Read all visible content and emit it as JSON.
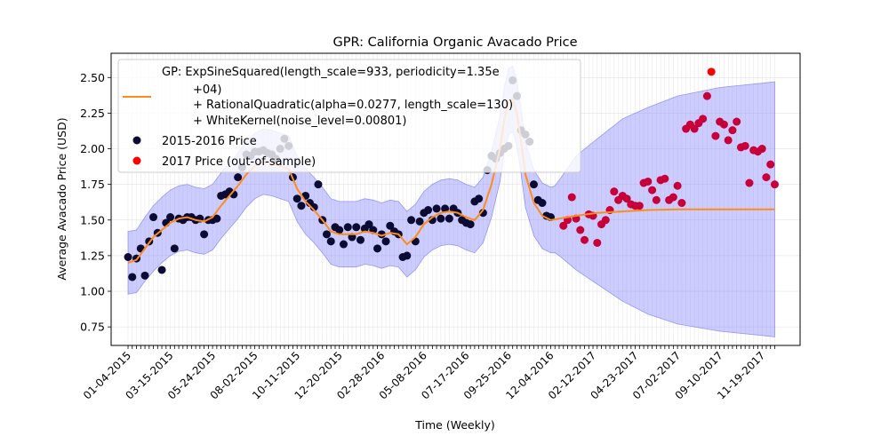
{
  "chart_data": {
    "type": "scatter",
    "title": "GPR: California Organic Avacado Price",
    "xlabel": "Time (Weekly)",
    "ylabel": "Average Avacado Price (USD)",
    "ylim": [
      0.62,
      2.67
    ],
    "xlim": [
      "2014-12-07",
      "2018-01-21"
    ],
    "grid": true,
    "legend_position": "top-left",
    "x_tick_labels": [
      "01-04-2015",
      "03-15-2015",
      "05-24-2015",
      "08-02-2015",
      "10-11-2015",
      "12-20-2015",
      "02-28-2016",
      "05-08-2016",
      "07-17-2016",
      "09-25-2016",
      "12-04-2016",
      "02-12-2017",
      "04-23-2017",
      "07-02-2017",
      "09-10-2017",
      "11-19-2017"
    ],
    "y_ticks": [
      0.75,
      1.0,
      1.25,
      1.5,
      1.75,
      2.0,
      2.25,
      2.5
    ],
    "y_tick_labels": [
      "0.75",
      "1.00",
      "1.25",
      "1.50",
      "1.75",
      "2.00",
      "2.25",
      "2.50"
    ],
    "legend": {
      "gp_label_lines": [
        "GP: ExpSineSquared(length_scale=933, periodicity=1.35e",
        "+04)",
        "+ RationalQuadratic(alpha=0.0277, length_scale=130)",
        "+ WhiteKernel(noise_level=0.00801)"
      ],
      "train_label": "2015-2016 Price",
      "test_label": "2017 Price (out-of-sample)"
    },
    "colors": {
      "train": "#0b0b33",
      "test": "#ff0000",
      "test_alt": "#c8003a",
      "line": "#ff8c1a",
      "band": "#8080ff"
    },
    "series": [
      {
        "name": "2015-2016 Price",
        "x": [
          "2015-01-04",
          "2015-01-11",
          "2015-01-18",
          "2015-01-25",
          "2015-02-01",
          "2015-02-08",
          "2015-02-15",
          "2015-02-22",
          "2015-03-01",
          "2015-03-08",
          "2015-03-15",
          "2015-03-22",
          "2015-03-29",
          "2015-04-05",
          "2015-04-12",
          "2015-04-19",
          "2015-04-26",
          "2015-05-03",
          "2015-05-10",
          "2015-05-17",
          "2015-05-24",
          "2015-05-31",
          "2015-06-07",
          "2015-06-14",
          "2015-06-21",
          "2015-06-28",
          "2015-07-05",
          "2015-07-12",
          "2015-07-19",
          "2015-07-26",
          "2015-08-02",
          "2015-08-09",
          "2015-08-16",
          "2015-08-23",
          "2015-08-30",
          "2015-09-06",
          "2015-09-13",
          "2015-09-20",
          "2015-09-27",
          "2015-10-04",
          "2015-10-11",
          "2015-10-18",
          "2015-10-25",
          "2015-11-01",
          "2015-11-08",
          "2015-11-15",
          "2015-11-22",
          "2015-11-29",
          "2015-12-06",
          "2015-12-13",
          "2015-12-20",
          "2015-12-27",
          "2016-01-03",
          "2016-01-10",
          "2016-01-17",
          "2016-01-24",
          "2016-01-31",
          "2016-02-07",
          "2016-02-14",
          "2016-02-21",
          "2016-02-28",
          "2016-03-06",
          "2016-03-13",
          "2016-03-20",
          "2016-03-27",
          "2016-04-03",
          "2016-04-10",
          "2016-04-17",
          "2016-04-24",
          "2016-05-01",
          "2016-05-08",
          "2016-05-15",
          "2016-05-22",
          "2016-05-29",
          "2016-06-05",
          "2016-06-12",
          "2016-06-19",
          "2016-06-26",
          "2016-07-03",
          "2016-07-10",
          "2016-07-17",
          "2016-07-24",
          "2016-07-31",
          "2016-08-07",
          "2016-08-14",
          "2016-08-21",
          "2016-08-28",
          "2016-09-04",
          "2016-09-11",
          "2016-09-18",
          "2016-09-25",
          "2016-10-02",
          "2016-10-09",
          "2016-10-16",
          "2016-10-23",
          "2016-10-30",
          "2016-11-06",
          "2016-11-13",
          "2016-11-20",
          "2016-11-27",
          "2016-12-04"
        ],
        "y": [
          1.24,
          1.1,
          1.23,
          1.3,
          1.11,
          1.35,
          1.52,
          1.41,
          1.15,
          1.48,
          1.52,
          1.3,
          1.51,
          1.5,
          1.52,
          1.52,
          1.5,
          1.51,
          1.4,
          1.5,
          1.5,
          1.51,
          1.67,
          1.68,
          1.7,
          1.68,
          1.8,
          1.87,
          1.96,
          1.95,
          1.98,
          1.98,
          1.99,
          1.97,
          1.96,
          1.93,
          2.0,
          2.07,
          2.02,
          1.8,
          1.65,
          1.6,
          1.67,
          1.62,
          1.59,
          1.75,
          1.5,
          1.4,
          1.35,
          1.45,
          1.43,
          1.33,
          1.45,
          1.38,
          1.45,
          1.36,
          1.44,
          1.47,
          1.43,
          1.3,
          1.4,
          1.35,
          1.46,
          1.42,
          1.4,
          1.24,
          1.25,
          1.5,
          1.35,
          1.49,
          1.55,
          1.57,
          1.5,
          1.58,
          1.51,
          1.58,
          1.51,
          1.58,
          1.55,
          1.5,
          1.48,
          1.47,
          1.63,
          1.65,
          1.55,
          1.85,
          1.95,
          1.93,
          1.97,
          2.0,
          2.02,
          2.48,
          2.37,
          2.13,
          2.1,
          2.05,
          1.75,
          1.64,
          1.62,
          1.53,
          1.52
        ]
      },
      {
        "name": "2017 Price (out-of-sample)",
        "x": [
          "2016-12-25",
          "2017-01-01",
          "2017-01-08",
          "2017-01-15",
          "2017-01-22",
          "2017-01-29",
          "2017-02-05",
          "2017-02-12",
          "2017-02-19",
          "2017-02-26",
          "2017-03-05",
          "2017-03-12",
          "2017-03-19",
          "2017-03-26",
          "2017-04-02",
          "2017-04-09",
          "2017-04-16",
          "2017-04-23",
          "2017-04-30",
          "2017-05-07",
          "2017-05-14",
          "2017-05-21",
          "2017-05-28",
          "2017-06-04",
          "2017-06-11",
          "2017-06-18",
          "2017-06-25",
          "2017-07-02",
          "2017-07-09",
          "2017-07-16",
          "2017-07-23",
          "2017-07-30",
          "2017-08-06",
          "2017-08-13",
          "2017-08-20",
          "2017-08-27",
          "2017-09-03",
          "2017-09-10",
          "2017-09-17",
          "2017-09-24",
          "2017-10-01",
          "2017-10-08",
          "2017-10-15",
          "2017-10-22",
          "2017-10-29",
          "2017-11-05",
          "2017-11-12",
          "2017-11-19",
          "2017-11-26",
          "2017-12-03",
          "2017-12-10"
        ],
        "y": [
          1.46,
          1.5,
          1.66,
          1.51,
          1.43,
          1.36,
          1.54,
          1.53,
          1.34,
          1.47,
          1.5,
          1.57,
          1.7,
          1.64,
          1.67,
          1.65,
          1.61,
          1.6,
          1.6,
          1.76,
          1.77,
          1.71,
          1.64,
          1.78,
          1.79,
          1.64,
          1.66,
          1.74,
          1.62,
          2.14,
          2.17,
          2.14,
          2.18,
          2.21,
          2.37,
          2.54,
          2.09,
          2.19,
          2.17,
          2.06,
          2.13,
          2.19,
          2.01,
          2.02,
          1.76,
          1.99,
          1.98,
          2.0,
          1.8,
          1.89,
          1.75
        ]
      }
    ],
    "gp_mean": {
      "x": [
        "2015-01-04",
        "2015-01-18",
        "2015-02-01",
        "2015-02-15",
        "2015-03-01",
        "2015-03-15",
        "2015-03-29",
        "2015-04-12",
        "2015-04-26",
        "2015-05-10",
        "2015-05-24",
        "2015-06-07",
        "2015-06-21",
        "2015-07-05",
        "2015-07-19",
        "2015-08-02",
        "2015-08-16",
        "2015-08-30",
        "2015-09-13",
        "2015-09-27",
        "2015-10-11",
        "2015-10-25",
        "2015-11-08",
        "2015-11-22",
        "2015-12-06",
        "2015-12-20",
        "2016-01-03",
        "2016-01-17",
        "2016-01-31",
        "2016-02-14",
        "2016-02-28",
        "2016-03-13",
        "2016-03-27",
        "2016-04-10",
        "2016-04-24",
        "2016-05-08",
        "2016-05-22",
        "2016-06-05",
        "2016-06-19",
        "2016-07-03",
        "2016-07-17",
        "2016-07-31",
        "2016-08-14",
        "2016-08-28",
        "2016-09-11",
        "2016-09-18",
        "2016-09-25",
        "2016-10-02",
        "2016-10-09",
        "2016-10-16",
        "2016-10-23",
        "2016-11-06",
        "2016-11-20",
        "2016-12-04",
        "2016-12-18",
        "2017-01-15",
        "2017-02-19",
        "2017-04-02",
        "2017-05-14",
        "2017-07-02",
        "2017-09-10",
        "2017-11-19",
        "2017-12-10"
      ],
      "y": [
        1.2,
        1.22,
        1.3,
        1.38,
        1.43,
        1.48,
        1.51,
        1.52,
        1.5,
        1.49,
        1.52,
        1.6,
        1.67,
        1.74,
        1.82,
        1.88,
        1.91,
        1.9,
        1.88,
        1.86,
        1.72,
        1.63,
        1.57,
        1.5,
        1.42,
        1.4,
        1.4,
        1.4,
        1.42,
        1.41,
        1.39,
        1.41,
        1.4,
        1.33,
        1.38,
        1.47,
        1.52,
        1.55,
        1.56,
        1.55,
        1.52,
        1.5,
        1.57,
        1.75,
        2.0,
        2.2,
        2.33,
        2.35,
        2.25,
        2.05,
        1.82,
        1.62,
        1.53,
        1.5,
        1.51,
        1.53,
        1.55,
        1.56,
        1.57,
        1.575,
        1.575,
        1.575,
        1.575
      ]
    },
    "gp_band": {
      "x": [
        "2015-01-04",
        "2015-01-18",
        "2015-02-01",
        "2015-02-15",
        "2015-03-01",
        "2015-03-15",
        "2015-03-29",
        "2015-04-12",
        "2015-04-26",
        "2015-05-10",
        "2015-05-24",
        "2015-06-07",
        "2015-06-21",
        "2015-07-05",
        "2015-07-19",
        "2015-08-02",
        "2015-08-16",
        "2015-08-30",
        "2015-09-13",
        "2015-09-27",
        "2015-10-11",
        "2015-10-25",
        "2015-11-08",
        "2015-11-22",
        "2015-12-06",
        "2015-12-20",
        "2016-01-03",
        "2016-01-17",
        "2016-01-31",
        "2016-02-14",
        "2016-02-28",
        "2016-03-13",
        "2016-03-27",
        "2016-04-10",
        "2016-04-24",
        "2016-05-08",
        "2016-05-22",
        "2016-06-05",
        "2016-06-19",
        "2016-07-03",
        "2016-07-17",
        "2016-07-31",
        "2016-08-14",
        "2016-08-28",
        "2016-09-11",
        "2016-09-18",
        "2016-09-25",
        "2016-10-02",
        "2016-10-09",
        "2016-10-16",
        "2016-10-23",
        "2016-11-06",
        "2016-11-20",
        "2016-12-04",
        "2016-12-11",
        "2016-12-18",
        "2017-01-15",
        "2017-02-19",
        "2017-04-02",
        "2017-05-14",
        "2017-07-02",
        "2017-09-10",
        "2017-11-19",
        "2017-12-10"
      ],
      "lower": [
        0.98,
        0.99,
        1.07,
        1.14,
        1.2,
        1.25,
        1.28,
        1.29,
        1.27,
        1.26,
        1.29,
        1.37,
        1.44,
        1.51,
        1.59,
        1.65,
        1.68,
        1.67,
        1.65,
        1.63,
        1.49,
        1.4,
        1.34,
        1.27,
        1.19,
        1.17,
        1.17,
        1.17,
        1.19,
        1.18,
        1.16,
        1.18,
        1.17,
        1.1,
        1.15,
        1.24,
        1.29,
        1.32,
        1.33,
        1.32,
        1.29,
        1.27,
        1.34,
        1.52,
        1.77,
        1.97,
        2.1,
        2.12,
        2.02,
        1.82,
        1.59,
        1.39,
        1.3,
        1.27,
        1.27,
        1.25,
        1.15,
        1.05,
        0.93,
        0.84,
        0.77,
        0.72,
        0.69,
        0.68
      ],
      "upper": [
        1.42,
        1.43,
        1.52,
        1.6,
        1.66,
        1.71,
        1.74,
        1.75,
        1.73,
        1.72,
        1.75,
        1.83,
        1.9,
        1.97,
        2.05,
        2.11,
        2.14,
        2.13,
        2.11,
        2.09,
        1.95,
        1.86,
        1.8,
        1.73,
        1.65,
        1.63,
        1.63,
        1.63,
        1.65,
        1.64,
        1.62,
        1.64,
        1.63,
        1.56,
        1.61,
        1.7,
        1.75,
        1.78,
        1.79,
        1.78,
        1.75,
        1.73,
        1.8,
        1.98,
        2.23,
        2.43,
        2.56,
        2.58,
        2.48,
        2.28,
        2.05,
        1.85,
        1.76,
        1.73,
        1.74,
        1.78,
        1.95,
        2.07,
        2.21,
        2.29,
        2.37,
        2.43,
        2.46,
        2.47
      ]
    }
  }
}
